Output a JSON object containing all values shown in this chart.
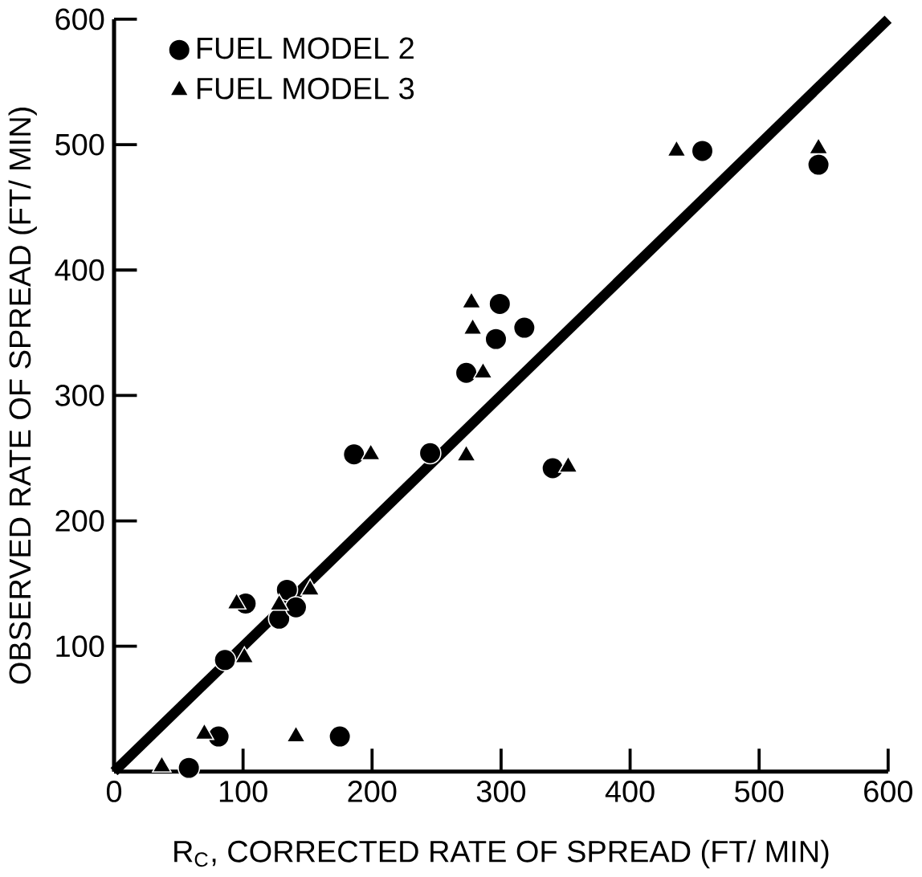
{
  "chart_data": {
    "type": "scatter",
    "xlabel": "R$_{C}$, CORRECTED RATE OF SPREAD (FT/ MIN)",
    "ylabel": "OBSERVED RATE OF SPREAD (FT/ MIN)",
    "xlim": [
      0,
      600
    ],
    "ylim": [
      0,
      600
    ],
    "xticks": [
      0,
      100,
      200,
      300,
      400,
      500,
      600
    ],
    "yticks": [
      {
        "value": 0,
        "label": null
      },
      100,
      200,
      300,
      400,
      500,
      600
    ],
    "grid": false,
    "legend": "top left",
    "series": [
      {
        "name": "FUEL MODEL 2",
        "color": "#000000",
        "marker": "circle",
        "x": [
          58,
          175,
          81,
          86,
          102,
          134,
          128,
          141,
          186,
          245,
          273,
          296,
          318,
          299,
          340,
          456,
          546
        ],
        "values": [
          3,
          28,
          28,
          89,
          134,
          145,
          122,
          131,
          253,
          254,
          318,
          345,
          354,
          373,
          242,
          495,
          484
        ]
      },
      {
        "name": "FUEL MODEL 3",
        "color": "#000000",
        "marker": "triangle",
        "x": [
          37,
          141,
          70,
          101,
          95,
          128,
          152,
          199,
          273,
          286,
          278,
          277,
          352,
          436,
          546
        ],
        "values": [
          4,
          28,
          30,
          91,
          134,
          133,
          145,
          253,
          252,
          318,
          353,
          374,
          243,
          495,
          497
        ]
      },
      {
        "type": "line",
        "color": "#000000",
        "marker": "none",
        "x": [
          0,
          600
        ],
        "values": [
          0,
          600
        ]
      }
    ]
  }
}
